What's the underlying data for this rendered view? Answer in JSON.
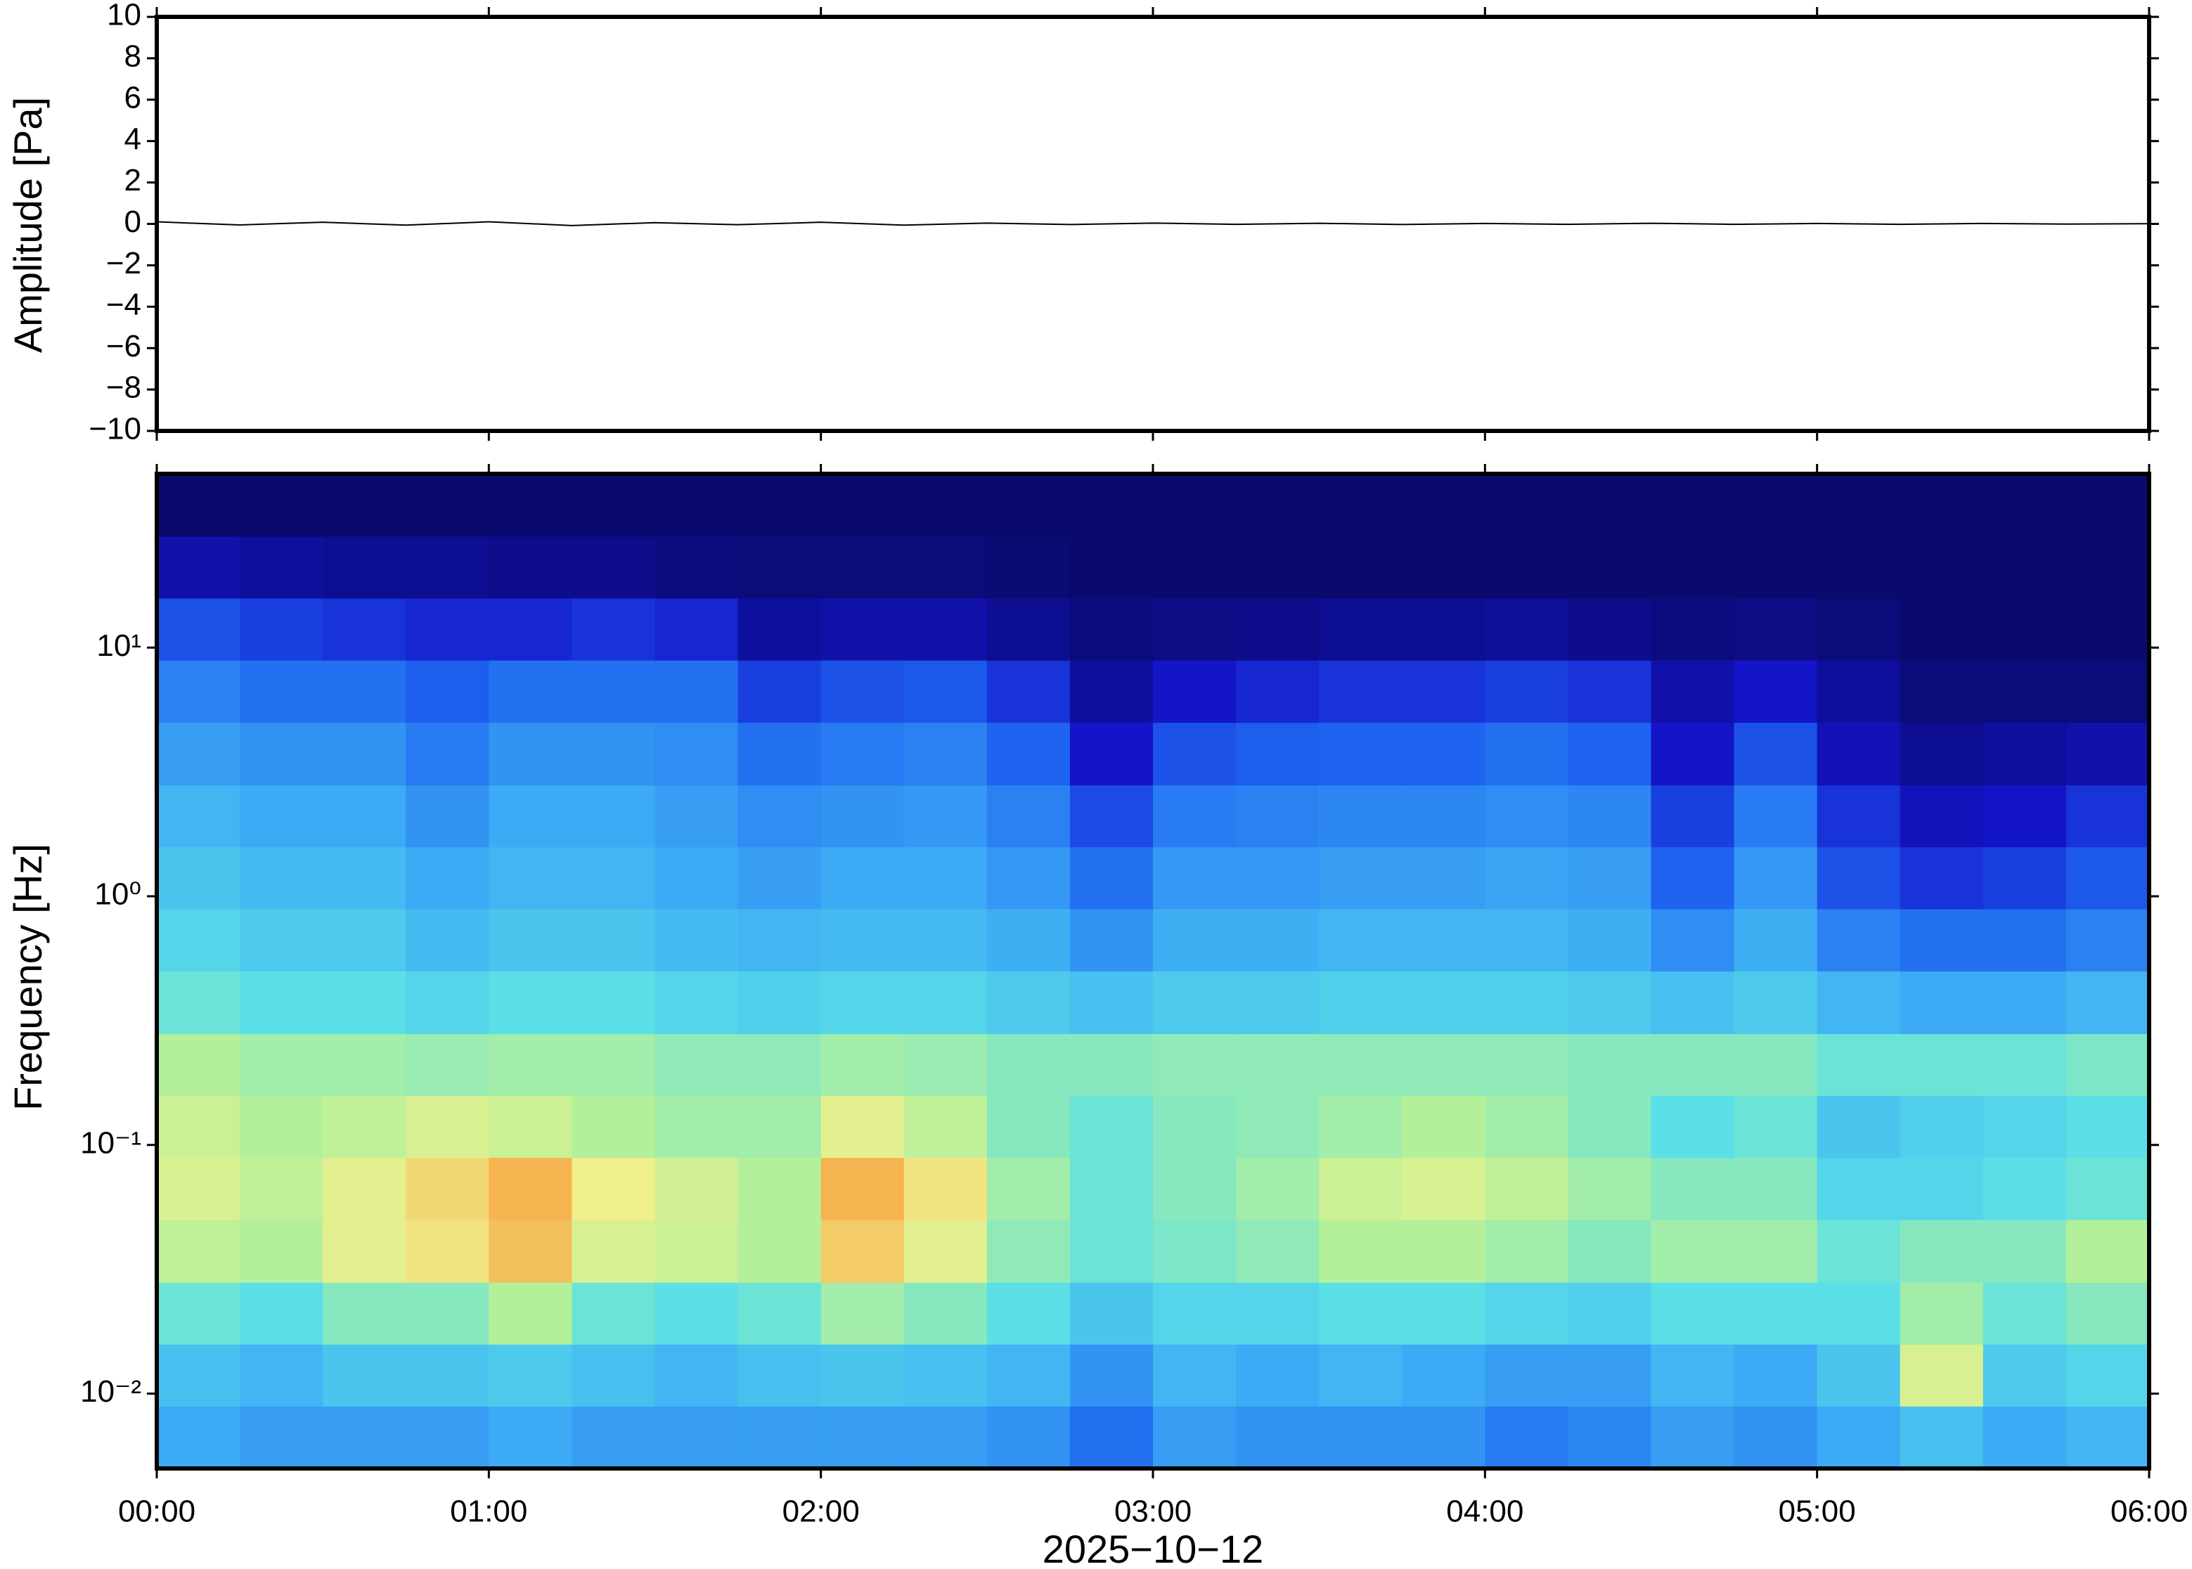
{
  "chart_data": [
    {
      "type": "line",
      "ylabel": "Amplitude [Pa]",
      "color": "#000000",
      "x": [
        0,
        0.25,
        0.5,
        0.75,
        1,
        1.25,
        1.5,
        1.75,
        2,
        2.25,
        2.5,
        2.75,
        3,
        3.25,
        3.5,
        3.75,
        4,
        4.25,
        4.5,
        4.75,
        5,
        5.25,
        5.5,
        5.75,
        6
      ],
      "values": [
        0.1,
        -0.05,
        0.08,
        -0.06,
        0.1,
        -0.08,
        0.06,
        -0.04,
        0.08,
        -0.06,
        0.04,
        -0.03,
        0.04,
        -0.02,
        0.03,
        -0.03,
        0.02,
        -0.02,
        0.03,
        -0.02,
        0.02,
        -0.02,
        0.02,
        -0.01,
        0.01
      ],
      "xlim": [
        0,
        6
      ],
      "ylim": [
        -10,
        10
      ],
      "yticks": [
        {
          "value": -10,
          "label": "−10"
        },
        {
          "value": -8,
          "label": "−8"
        },
        {
          "value": -6,
          "label": "−6"
        },
        {
          "value": -4,
          "label": "−4"
        },
        {
          "value": -2,
          "label": "−2"
        },
        0,
        2,
        4,
        6,
        8,
        10
      ]
    },
    {
      "type": "heatmap",
      "ylabel": "Frequency [Hz]",
      "xlabel": "2025−10−12",
      "log_y": true,
      "xlim": [
        0,
        6
      ],
      "ylim": [
        0.005,
        50
      ],
      "xticks": [
        {
          "value": 0,
          "label": "00:00"
        },
        {
          "value": 1,
          "label": "01:00"
        },
        {
          "value": 2,
          "label": "02:00"
        },
        {
          "value": 3,
          "label": "03:00"
        },
        {
          "value": 4,
          "label": "04:00"
        },
        {
          "value": 5,
          "label": "05:00"
        },
        {
          "value": 6,
          "label": "06:00"
        }
      ],
      "yticks": [
        {
          "value": 0.01,
          "label": "10⁻²"
        },
        {
          "value": 0.1,
          "label": "10⁻¹"
        },
        {
          "value": 1,
          "label": "10⁰"
        },
        {
          "value": 10,
          "label": "10¹"
        }
      ],
      "colormap": [
        {
          "value": 0,
          "color": "#0a0a6e"
        },
        {
          "value": 0.15,
          "color": "#1414c8"
        },
        {
          "value": 0.28,
          "color": "#1e64f0"
        },
        {
          "value": 0.4,
          "color": "#3caaf5"
        },
        {
          "value": 0.5,
          "color": "#5ae0e6"
        },
        {
          "value": 0.6,
          "color": "#b4f09a"
        },
        {
          "value": 0.7,
          "color": "#f0f08c"
        },
        {
          "value": 0.8,
          "color": "#f5b450"
        },
        {
          "value": 0.9,
          "color": "#f06432"
        }
      ],
      "x_edges": [
        0,
        0.25,
        0.5,
        0.75,
        1,
        1.25,
        1.5,
        1.75,
        2,
        2.25,
        2.5,
        2.75,
        3,
        3.25,
        3.5,
        3.75,
        4,
        4.25,
        4.5,
        4.75,
        5,
        5.25,
        5.5,
        5.75,
        6
      ],
      "y_edges": [
        0.005,
        0.0089,
        0.0158,
        0.028,
        0.05,
        0.089,
        0.158,
        0.28,
        0.5,
        0.89,
        1.58,
        2.8,
        5,
        8.9,
        15.8,
        28,
        50
      ],
      "z": [
        [
          0.4,
          0.38,
          0.38,
          0.38,
          0.4,
          0.38,
          0.38,
          0.38,
          0.38,
          0.38,
          0.36,
          0.3,
          0.38,
          0.36,
          0.36,
          0.36,
          0.32,
          0.34,
          0.38,
          0.36,
          0.4,
          0.44,
          0.4,
          0.42
        ],
        [
          0.44,
          0.42,
          0.45,
          0.45,
          0.46,
          0.44,
          0.42,
          0.44,
          0.45,
          0.44,
          0.42,
          0.36,
          0.42,
          0.4,
          0.42,
          0.4,
          0.38,
          0.38,
          0.42,
          0.4,
          0.45,
          0.66,
          0.46,
          0.48
        ],
        [
          0.52,
          0.5,
          0.55,
          0.55,
          0.6,
          0.52,
          0.5,
          0.52,
          0.58,
          0.55,
          0.5,
          0.45,
          0.48,
          0.48,
          0.5,
          0.5,
          0.48,
          0.47,
          0.5,
          0.5,
          0.5,
          0.58,
          0.52,
          0.55
        ],
        [
          0.62,
          0.6,
          0.68,
          0.72,
          0.78,
          0.66,
          0.64,
          0.6,
          0.76,
          0.68,
          0.56,
          0.52,
          0.54,
          0.56,
          0.6,
          0.6,
          0.58,
          0.55,
          0.58,
          0.58,
          0.52,
          0.55,
          0.55,
          0.6
        ],
        [
          0.66,
          0.62,
          0.68,
          0.74,
          0.8,
          0.7,
          0.65,
          0.6,
          0.8,
          0.72,
          0.58,
          0.52,
          0.55,
          0.58,
          0.64,
          0.66,
          0.62,
          0.58,
          0.55,
          0.55,
          0.48,
          0.48,
          0.5,
          0.52
        ],
        [
          0.64,
          0.6,
          0.62,
          0.66,
          0.64,
          0.6,
          0.58,
          0.58,
          0.68,
          0.62,
          0.55,
          0.52,
          0.55,
          0.56,
          0.58,
          0.6,
          0.58,
          0.55,
          0.5,
          0.52,
          0.45,
          0.47,
          0.48,
          0.5
        ],
        [
          0.6,
          0.58,
          0.58,
          0.57,
          0.58,
          0.58,
          0.56,
          0.56,
          0.58,
          0.57,
          0.55,
          0.55,
          0.56,
          0.56,
          0.56,
          0.56,
          0.56,
          0.55,
          0.55,
          0.55,
          0.52,
          0.52,
          0.52,
          0.54
        ],
        [
          0.52,
          0.5,
          0.5,
          0.48,
          0.5,
          0.5,
          0.48,
          0.47,
          0.48,
          0.48,
          0.46,
          0.44,
          0.46,
          0.46,
          0.47,
          0.47,
          0.47,
          0.46,
          0.44,
          0.46,
          0.42,
          0.4,
          0.4,
          0.42
        ],
        [
          0.48,
          0.46,
          0.46,
          0.43,
          0.45,
          0.45,
          0.43,
          0.42,
          0.43,
          0.43,
          0.41,
          0.36,
          0.41,
          0.41,
          0.42,
          0.42,
          0.42,
          0.41,
          0.35,
          0.41,
          0.33,
          0.3,
          0.3,
          0.33
        ],
        [
          0.45,
          0.43,
          0.43,
          0.4,
          0.42,
          0.42,
          0.4,
          0.38,
          0.4,
          0.4,
          0.37,
          0.3,
          0.37,
          0.37,
          0.38,
          0.38,
          0.39,
          0.38,
          0.28,
          0.37,
          0.25,
          0.2,
          0.22,
          0.26
        ],
        [
          0.42,
          0.4,
          0.4,
          0.36,
          0.4,
          0.4,
          0.38,
          0.35,
          0.36,
          0.37,
          0.33,
          0.24,
          0.32,
          0.33,
          0.34,
          0.34,
          0.35,
          0.34,
          0.22,
          0.32,
          0.2,
          0.13,
          0.15,
          0.2
        ],
        [
          0.38,
          0.36,
          0.36,
          0.32,
          0.36,
          0.36,
          0.35,
          0.3,
          0.32,
          0.33,
          0.28,
          0.15,
          0.25,
          0.27,
          0.28,
          0.28,
          0.3,
          0.28,
          0.15,
          0.25,
          0.12,
          0.06,
          0.08,
          0.1
        ],
        [
          0.33,
          0.3,
          0.3,
          0.27,
          0.3,
          0.3,
          0.3,
          0.22,
          0.25,
          0.26,
          0.2,
          0.08,
          0.15,
          0.18,
          0.2,
          0.2,
          0.22,
          0.2,
          0.1,
          0.15,
          0.08,
          0.02,
          0.02,
          0.02
        ],
        [
          0.25,
          0.22,
          0.2,
          0.18,
          0.18,
          0.2,
          0.18,
          0.08,
          0.1,
          0.1,
          0.06,
          0.03,
          0.04,
          0.05,
          0.06,
          0.06,
          0.07,
          0.05,
          0.03,
          0.04,
          0.02,
          0,
          0,
          0
        ],
        [
          0.1,
          0.08,
          0.06,
          0.06,
          0.05,
          0.05,
          0.03,
          0.02,
          0.02,
          0.02,
          0.01,
          0,
          0,
          0,
          0,
          0,
          0,
          0,
          0,
          0,
          0,
          0,
          0,
          0
        ],
        [
          0,
          0,
          0,
          0,
          0,
          0,
          0,
          0,
          0,
          0,
          0,
          0,
          0,
          0,
          0,
          0,
          0,
          0,
          0,
          0,
          0,
          0,
          0,
          0
        ]
      ]
    }
  ]
}
